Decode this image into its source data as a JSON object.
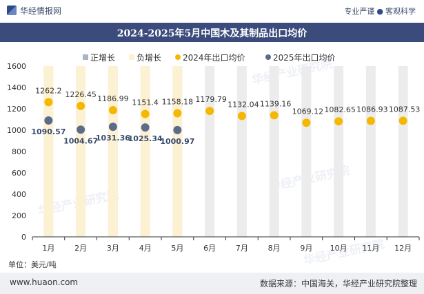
{
  "header": {
    "brand": "华经情报网",
    "tagline_left": "专业严谨",
    "tagline_sep": "●",
    "tagline_right": "客观科学"
  },
  "footer": {
    "url": "www.huaon.com",
    "source": "数据来源：中国海关，华经产业研究院整理"
  },
  "watermark": "华经产业研究院",
  "colors": {
    "title_band": "#3b4c7c",
    "series_2024": "#f5b800",
    "series_2025": "#5b6b8c",
    "bar_bg": "#ececec",
    "bar_neg": "#fdf1d4",
    "pos_legend": "#a9b4c6"
  },
  "chart_data": {
    "type": "line",
    "title": "2024-2025年5月中国木及其制品出口均价",
    "unit_label": "单位：美元/吨",
    "categories": [
      "1月",
      "2月",
      "3月",
      "4月",
      "5月",
      "6月",
      "7月",
      "8月",
      "9月",
      "10月",
      "11月",
      "12月"
    ],
    "ylim": [
      0,
      1600
    ],
    "yticks": [
      0,
      200,
      400,
      600,
      800,
      1000,
      1200,
      1400,
      1600
    ],
    "legend": [
      "正增长",
      "负增长",
      "2024年出口均价",
      "2025年出口均价"
    ],
    "legend_position": "top-center",
    "series": [
      {
        "name": "2024年出口均价",
        "values": [
          1262.2,
          1226.45,
          1186.99,
          1151.4,
          1158.18,
          1179.79,
          1132.04,
          1139.16,
          1069.12,
          1082.65,
          1086.93,
          1087.53
        ]
      },
      {
        "name": "2025年出口均价",
        "values": [
          1090.57,
          1004.67,
          1031.36,
          1025.34,
          1000.97,
          null,
          null,
          null,
          null,
          null,
          null,
          null
        ]
      }
    ],
    "growth": [
      "负增长",
      "负增长",
      "负增长",
      "负增长",
      "负增长",
      null,
      null,
      null,
      null,
      null,
      null,
      null
    ]
  }
}
